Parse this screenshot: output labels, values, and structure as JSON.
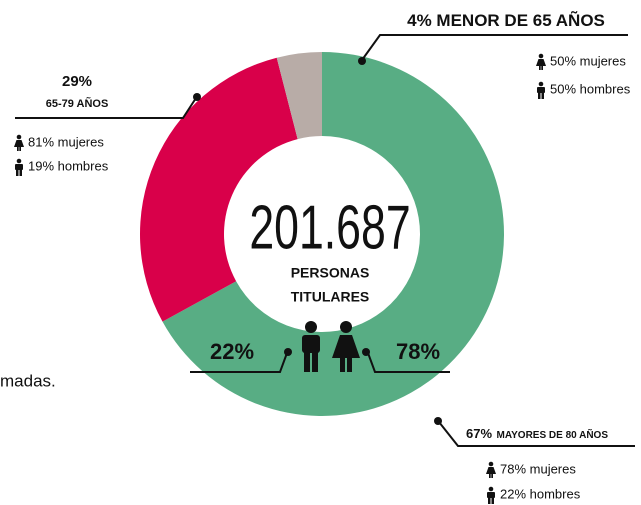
{
  "chart_data": {
    "type": "pie",
    "categories": [
      "MAYORES DE 80 AÑOS",
      "65-79 AÑOS",
      "MENOR DE 65 AÑOS"
    ],
    "values": [
      67,
      29,
      4
    ],
    "value_labels": [
      "67%",
      "29%",
      "4%"
    ],
    "colors": [
      "#58ad84",
      "#d9004a",
      "#b8aca7"
    ],
    "breakdown": [
      [
        "78% mujeres",
        "22% hombres"
      ],
      [
        "81% mujeres",
        "19% hombres"
      ],
      [
        "50% mujeres",
        "50% hombres"
      ]
    ],
    "center_value": "201.687",
    "center_label": [
      "PERSONAS",
      "TITULARES"
    ],
    "gender_split": [
      "22%",
      "78%"
    ]
  },
  "fragment": "madas."
}
